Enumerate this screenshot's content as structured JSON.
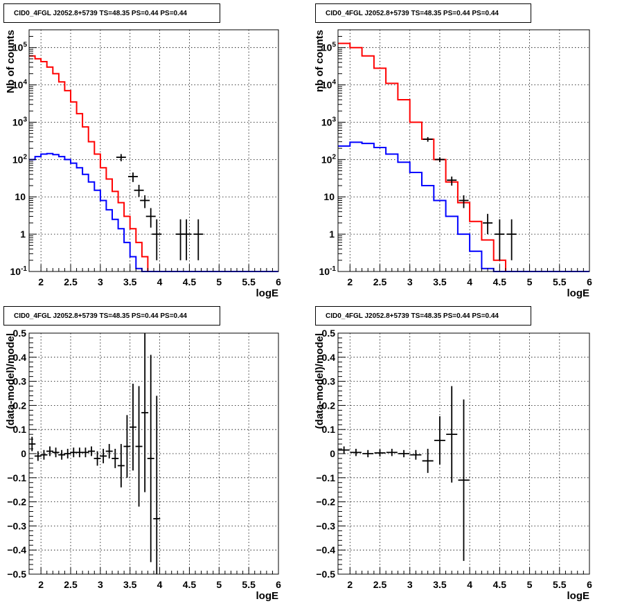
{
  "colors": {
    "model": "#ff0000",
    "component": "#0000ff",
    "data": "#000000",
    "grid": "#000000"
  },
  "chart_data": [
    {
      "type": "line",
      "title": "CID0_4FGL J2052.8+5739 TS=48.35 PS=0.44 PS=0.44",
      "xlabel": "logE",
      "ylabel": "Nb of counts",
      "yscale": "log",
      "xlim": [
        1.8,
        6
      ],
      "ylim": [
        0.1,
        300000
      ],
      "grid": true,
      "xticklabels": [
        "2",
        "2.5",
        "3",
        "3.5",
        "4",
        "4.5",
        "5",
        "5.5",
        "6"
      ],
      "yticklabels": [
        "10^-1",
        "1",
        "10",
        "10^2",
        "10^3",
        "10^4",
        "10^5"
      ],
      "bin_edges": [
        1.8,
        1.9,
        2.0,
        2.1,
        2.2,
        2.3,
        2.4,
        2.5,
        2.6,
        2.7,
        2.8,
        2.9,
        3.0,
        3.1,
        3.2,
        3.3,
        3.4,
        3.5,
        3.6,
        3.7,
        3.8,
        3.9,
        4.0,
        4.1,
        4.2,
        4.3,
        4.4,
        4.5,
        4.6,
        4.7,
        4.8,
        4.9,
        5.0,
        5.1,
        5.2,
        5.3,
        5.4,
        5.5,
        5.6,
        5.7,
        5.8,
        5.9,
        6.0
      ],
      "series": [
        {
          "kind": "model",
          "values": [
            60000,
            50000,
            42000,
            30000,
            20000,
            12000,
            7000,
            3500,
            1700,
            750,
            300,
            140,
            60,
            30,
            14,
            7,
            3,
            1.4,
            0.6,
            0.25,
            0.1,
            0.1,
            0.1,
            0.1,
            0.1,
            0.1,
            0.1,
            0.1,
            0.1,
            0.1,
            0.1,
            0.1,
            0.1,
            0.1,
            0.1,
            0.1,
            0.1,
            0.1,
            0.1,
            0.1,
            0.1,
            0.1
          ]
        },
        {
          "kind": "component",
          "values": [
            100,
            120,
            140,
            145,
            135,
            120,
            100,
            80,
            60,
            40,
            25,
            15,
            8,
            4.5,
            2.5,
            1.4,
            0.6,
            0.25,
            0.12,
            0.1,
            0.1,
            0.1,
            0.1,
            0.1,
            0.1,
            0.1,
            0.1,
            0.1,
            0.1,
            0.1,
            0.1,
            0.1,
            0.1,
            0.1,
            0.1,
            0.1,
            0.1,
            0.1,
            0.1,
            0.1,
            0.1,
            0.1
          ]
        },
        {
          "kind": "data",
          "points": [
            {
              "x": 3.35,
              "y": 115,
              "ylo": 90,
              "yhi": 140
            },
            {
              "x": 3.55,
              "y": 35,
              "ylo": 25,
              "yhi": 45
            },
            {
              "x": 3.65,
              "y": 15,
              "ylo": 10,
              "yhi": 21
            },
            {
              "x": 3.75,
              "y": 8,
              "ylo": 5,
              "yhi": 11
            },
            {
              "x": 3.85,
              "y": 3,
              "ylo": 1.5,
              "yhi": 5
            },
            {
              "x": 3.95,
              "y": 1,
              "ylo": 0.2,
              "yhi": 2.5
            },
            {
              "x": 4.35,
              "y": 1,
              "ylo": 0.2,
              "yhi": 2.5
            },
            {
              "x": 4.45,
              "y": 1,
              "ylo": 0.2,
              "yhi": 2.5
            },
            {
              "x": 4.65,
              "y": 1,
              "ylo": 0.2,
              "yhi": 2.5
            }
          ]
        }
      ]
    },
    {
      "type": "line",
      "title": "CID0_4FGL J2052.8+5739 TS=48.35 PS=0.44 PS=0.44",
      "xlabel": "logE",
      "ylabel": "nb of counts",
      "yscale": "log",
      "xlim": [
        1.8,
        6
      ],
      "ylim": [
        0.1,
        300000
      ],
      "grid": true,
      "xticklabels": [
        "2",
        "2.5",
        "3",
        "3.5",
        "4",
        "4.5",
        "5",
        "5.5",
        "6"
      ],
      "yticklabels": [
        "10^-1",
        "1",
        "10",
        "10^2",
        "10^3",
        "10^4",
        "10^5"
      ],
      "bin_edges": [
        1.8,
        2.0,
        2.2,
        2.4,
        2.6,
        2.8,
        3.0,
        3.2,
        3.4,
        3.6,
        3.8,
        4.0,
        4.2,
        4.4,
        4.6,
        4.8,
        5.0,
        5.2,
        5.4,
        5.6,
        5.8,
        6.0
      ],
      "series": [
        {
          "kind": "model",
          "values": [
            130000,
            100000,
            60000,
            28000,
            11000,
            4000,
            1000,
            350,
            100,
            25,
            7,
            2.2,
            0.7,
            0.2,
            0.1,
            0.1,
            0.1,
            0.1,
            0.1,
            0.1,
            0.1
          ]
        },
        {
          "kind": "component",
          "values": [
            230,
            290,
            270,
            210,
            140,
            85,
            45,
            20,
            8,
            3,
            1,
            0.35,
            0.12,
            0.1,
            0.1,
            0.1,
            0.1,
            0.1,
            0.1,
            0.1,
            0.1
          ]
        },
        {
          "kind": "data",
          "points": [
            {
              "x": 3.3,
              "y": 350,
              "ylo": 300,
              "yhi": 400
            },
            {
              "x": 3.5,
              "y": 100,
              "ylo": 85,
              "yhi": 115
            },
            {
              "x": 3.7,
              "y": 28,
              "ylo": 20,
              "yhi": 35
            },
            {
              "x": 3.9,
              "y": 8,
              "ylo": 5,
              "yhi": 11
            },
            {
              "x": 4.3,
              "y": 2,
              "ylo": 1,
              "yhi": 3.5
            },
            {
              "x": 4.5,
              "y": 1,
              "ylo": 0.2,
              "yhi": 2.5
            },
            {
              "x": 4.7,
              "y": 1,
              "ylo": 0.2,
              "yhi": 2.5
            }
          ]
        }
      ]
    },
    {
      "type": "scatter",
      "title": "CID0_4FGL J2052.8+5739 TS=48.35 PS=0.44 PS=0.44",
      "xlabel": "logE",
      "ylabel": "(data-model)/model",
      "xlim": [
        1.8,
        6
      ],
      "ylim": [
        -0.5,
        0.5
      ],
      "grid": true,
      "xticklabels": [
        "2",
        "2.5",
        "3",
        "3.5",
        "4",
        "4.5",
        "5",
        "5.5",
        "6"
      ],
      "yticklabels": [
        "-0.5",
        "-0.4",
        "-0.3",
        "-0.2",
        "-0.1",
        "0",
        "0.1",
        "0.2",
        "0.3",
        "0.4",
        "0.5"
      ],
      "points": [
        {
          "x": 1.85,
          "y": 0.04,
          "err": 0.03
        },
        {
          "x": 1.95,
          "y": -0.01,
          "err": 0.02
        },
        {
          "x": 2.05,
          "y": -0.005,
          "err": 0.02
        },
        {
          "x": 2.15,
          "y": 0.01,
          "err": 0.02
        },
        {
          "x": 2.25,
          "y": 0.005,
          "err": 0.02
        },
        {
          "x": 2.35,
          "y": -0.005,
          "err": 0.02
        },
        {
          "x": 2.45,
          "y": 0.0,
          "err": 0.02
        },
        {
          "x": 2.55,
          "y": 0.005,
          "err": 0.02
        },
        {
          "x": 2.65,
          "y": 0.005,
          "err": 0.02
        },
        {
          "x": 2.75,
          "y": 0.005,
          "err": 0.02
        },
        {
          "x": 2.85,
          "y": 0.01,
          "err": 0.02
        },
        {
          "x": 2.95,
          "y": -0.02,
          "err": 0.03
        },
        {
          "x": 3.05,
          "y": -0.01,
          "err": 0.03
        },
        {
          "x": 3.15,
          "y": 0.01,
          "err": 0.03
        },
        {
          "x": 3.25,
          "y": -0.02,
          "err": 0.04
        },
        {
          "x": 3.35,
          "y": -0.05,
          "err": 0.09
        },
        {
          "x": 3.45,
          "y": 0.03,
          "err": 0.13
        },
        {
          "x": 3.55,
          "y": 0.11,
          "err": 0.18
        },
        {
          "x": 3.65,
          "y": 0.03,
          "err": 0.25
        },
        {
          "x": 3.75,
          "y": 0.17,
          "err": 0.33
        },
        {
          "x": 3.85,
          "y": -0.02,
          "err": 0.43
        },
        {
          "x": 3.95,
          "y": -0.27,
          "err": 0.51
        }
      ]
    },
    {
      "type": "scatter",
      "title": "CID0_4FGL J2052.8+5739 TS=48.35 PS=0.44 PS=0.44",
      "xlabel": "logE",
      "ylabel": "(data-model)/model",
      "xlim": [
        1.8,
        6
      ],
      "ylim": [
        -0.5,
        0.5
      ],
      "grid": true,
      "xticklabels": [
        "2",
        "2.5",
        "3",
        "3.5",
        "4",
        "4.5",
        "5",
        "5.5",
        "6"
      ],
      "yticklabels": [
        "-0.5",
        "-0.4",
        "-0.3",
        "-0.2",
        "-0.1",
        "0",
        "0.1",
        "0.2",
        "0.3",
        "0.4",
        "0.5"
      ],
      "points": [
        {
          "x": 1.9,
          "y": 0.015,
          "err": 0.015
        },
        {
          "x": 2.1,
          "y": 0.005,
          "err": 0.015
        },
        {
          "x": 2.3,
          "y": 0.0,
          "err": 0.015
        },
        {
          "x": 2.5,
          "y": 0.003,
          "err": 0.015
        },
        {
          "x": 2.7,
          "y": 0.005,
          "err": 0.015
        },
        {
          "x": 2.9,
          "y": 0.0,
          "err": 0.015
        },
        {
          "x": 3.1,
          "y": -0.005,
          "err": 0.02
        },
        {
          "x": 3.3,
          "y": -0.03,
          "err": 0.05
        },
        {
          "x": 3.5,
          "y": 0.055,
          "err": 0.1
        },
        {
          "x": 3.7,
          "y": 0.08,
          "err": 0.2
        },
        {
          "x": 3.9,
          "y": -0.11,
          "err": 0.335
        }
      ]
    }
  ]
}
